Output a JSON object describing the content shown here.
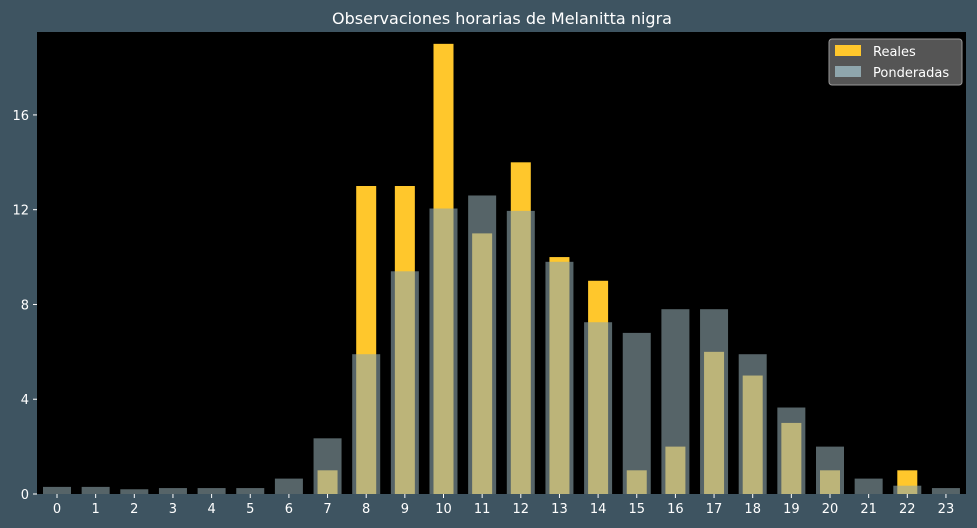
{
  "chart_data": {
    "type": "bar",
    "title": "Observaciones horarias de Melanitta nigra",
    "xlabel": "",
    "ylabel": "",
    "categories": [
      "0",
      "1",
      "2",
      "3",
      "4",
      "5",
      "6",
      "7",
      "8",
      "9",
      "10",
      "11",
      "12",
      "13",
      "14",
      "15",
      "16",
      "17",
      "18",
      "19",
      "20",
      "21",
      "22",
      "23"
    ],
    "ylim": [
      0,
      19.5
    ],
    "yticks": [
      0,
      4,
      8,
      12,
      16
    ],
    "grid": false,
    "legend_position": "top-right",
    "series": [
      {
        "name": "Reales",
        "color": "#ffc72c",
        "values": [
          0,
          0,
          0,
          0,
          0,
          0,
          0,
          1,
          13,
          13,
          19,
          11,
          14,
          10,
          9,
          1,
          2,
          6,
          5,
          3,
          1,
          0,
          1,
          0
        ]
      },
      {
        "name": "Ponderadas",
        "color": "#8fa6ad",
        "values": [
          0.3,
          0.3,
          0.2,
          0.25,
          0.25,
          0.25,
          0.65,
          2.35,
          5.9,
          9.4,
          12.05,
          12.6,
          11.95,
          9.8,
          7.25,
          6.8,
          7.8,
          7.8,
          5.9,
          3.65,
          2.0,
          0.65,
          0.35,
          0.25
        ]
      }
    ]
  }
}
